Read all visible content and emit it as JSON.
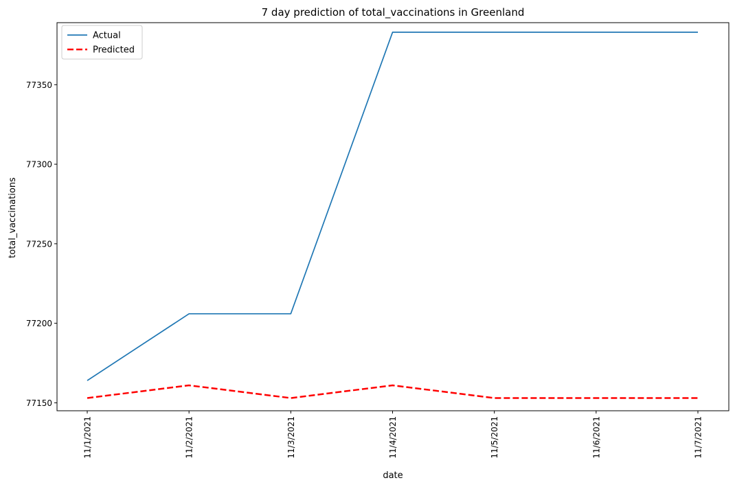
{
  "chart_data": {
    "type": "line",
    "title": "7 day prediction of total_vaccinations in Greenland",
    "xlabel": "date",
    "ylabel": "total_vaccinations",
    "categories": [
      "11/1/2021",
      "11/2/2021",
      "11/3/2021",
      "11/4/2021",
      "11/5/2021",
      "11/6/2021",
      "11/7/2021"
    ],
    "yticks": [
      77150,
      77200,
      77250,
      77300,
      77350
    ],
    "ylim": [
      77145,
      77389
    ],
    "grid": false,
    "legend_position": "top-left",
    "series": [
      {
        "name": "Actual",
        "values": [
          77164,
          77206,
          77206,
          77383,
          77383,
          77383,
          77383
        ],
        "color": "#1f77b4",
        "style": "solid"
      },
      {
        "name": "Predicted",
        "values": [
          77153,
          77161,
          77153,
          77161,
          77153,
          77153,
          77153
        ],
        "color": "#ff0000",
        "style": "dashed"
      }
    ]
  }
}
